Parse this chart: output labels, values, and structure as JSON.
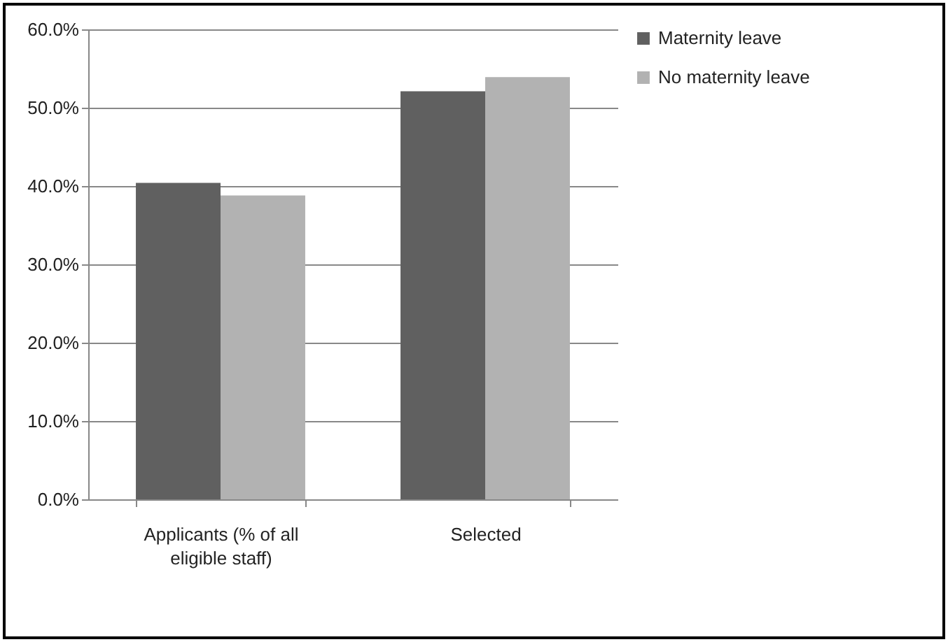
{
  "chart_data": {
    "type": "bar",
    "categories": [
      "Applicants (% of all eligible staff)",
      "Selected"
    ],
    "series": [
      {
        "name": "Maternity leave",
        "color": "#606060",
        "values": [
          40.4,
          52.1
        ]
      },
      {
        "name": "No maternity leave",
        "color": "#b2b2b2",
        "values": [
          38.8,
          53.9
        ]
      }
    ],
    "ylim": [
      0,
      60
    ],
    "yticks": [
      {
        "value": 0,
        "label": "0.0%"
      },
      {
        "value": 10,
        "label": "10.0%"
      },
      {
        "value": 20,
        "label": "20.0%"
      },
      {
        "value": 30,
        "label": "30.0%"
      },
      {
        "value": 40,
        "label": "40.0%"
      },
      {
        "value": 50,
        "label": "50.0%"
      },
      {
        "value": 60,
        "label": "60.0%"
      }
    ],
    "grid": "y",
    "legend": "right"
  }
}
